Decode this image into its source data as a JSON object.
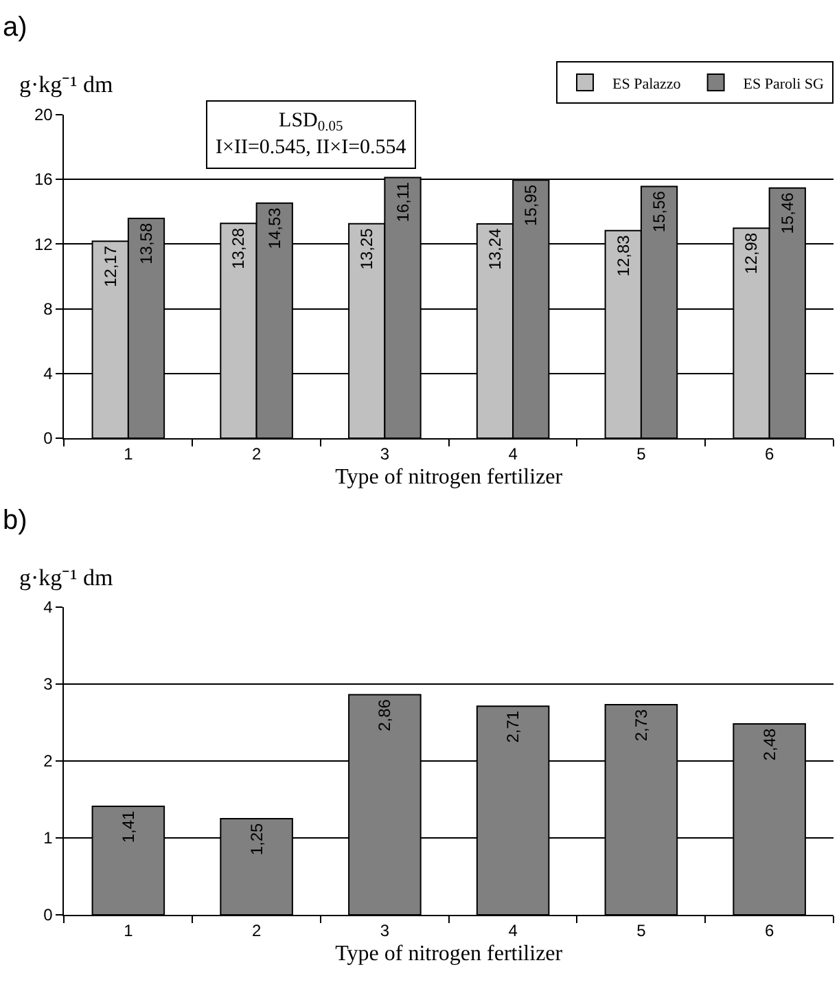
{
  "chart_data": [
    {
      "type": "bar",
      "title": "a)",
      "ylabel": "g·kg⁻¹ dm",
      "xlabel": "Type of nitrogen fertilizer",
      "categories": [
        "1",
        "2",
        "3",
        "4",
        "5",
        "6"
      ],
      "series": [
        {
          "name": "ES Palazzo",
          "color": "#c0c0c0",
          "values": [
            12.17,
            13.28,
            13.25,
            13.24,
            12.83,
            12.98
          ],
          "value_labels": [
            "12,17",
            "13,28",
            "13,25",
            "13,24",
            "12,83",
            "12,98"
          ]
        },
        {
          "name": "ES Paroli SG",
          "color": "#808080",
          "values": [
            13.58,
            14.53,
            16.11,
            15.95,
            15.56,
            15.46
          ],
          "value_labels": [
            "13,58",
            "14,53",
            "16,11",
            "15,95",
            "15,56",
            "15,46"
          ]
        }
      ],
      "ylim": [
        0,
        20
      ],
      "yticks": [
        0,
        4,
        8,
        12,
        16,
        20
      ],
      "grid": "y",
      "legend": "top right",
      "annotations": [
        "LSD$_{0.05}$\nI×II=0.545, II×I=0.554"
      ]
    },
    {
      "type": "bar",
      "title": "b)",
      "ylabel": "g·kg⁻¹ dm",
      "xlabel": "Type of nitrogen fertilizer",
      "categories": [
        "1",
        "2",
        "3",
        "4",
        "5",
        "6"
      ],
      "series": [
        {
          "color": "#808080",
          "values": [
            1.41,
            1.25,
            2.86,
            2.71,
            2.73,
            2.48
          ],
          "value_labels": [
            "1,41",
            "1,25",
            "2,86",
            "2,71",
            "2,73",
            "2,48"
          ]
        }
      ],
      "ylim": [
        0,
        4
      ],
      "yticks": [
        0,
        1,
        2,
        3,
        4
      ],
      "grid": "y"
    }
  ]
}
